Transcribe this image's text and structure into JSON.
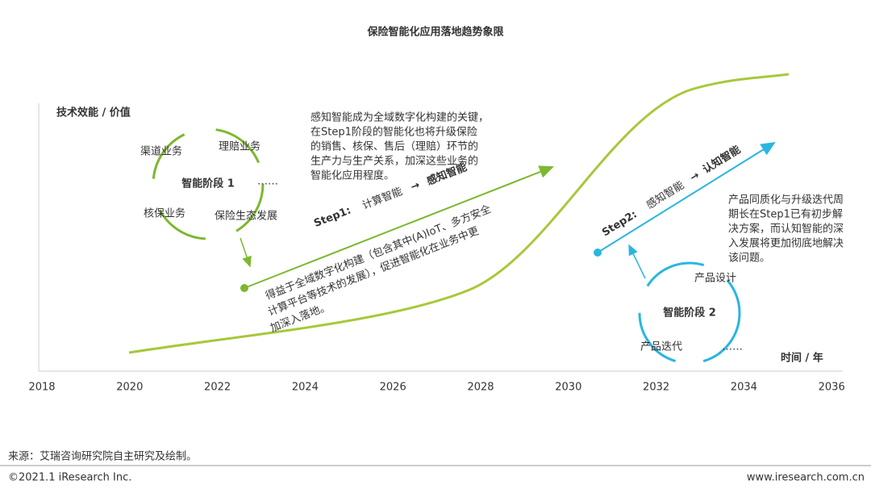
{
  "title": "保险智能化应用落地趋势象限",
  "axis": {
    "y_label": "技术效能 / 价值",
    "x_label": "时间 / 年",
    "ticks": [
      "2018",
      "2020",
      "2022",
      "2024",
      "2026",
      "2028",
      "2030",
      "2032",
      "2034",
      "2036"
    ]
  },
  "stage1": {
    "label": "智能阶段 1",
    "items": [
      "渠道业务",
      "理赔业务",
      "……",
      "核保业务",
      "保险生态发展"
    ]
  },
  "step1": {
    "prefix": "Step1:",
    "from": "计算智能",
    "arrow": "→",
    "to": "感知智能",
    "note": [
      "得益于全域数字化构建（包含其中(A)IoT、多方安全",
      "计算平台等技术的发展），促进智能化在业务中更",
      "加深入落地。"
    ]
  },
  "top_note": [
    "感知智能成为全域数字化构建的关键，",
    "在Step1阶段的智能化也将升级保险",
    "的销售、核保、售后（理赔）环节的",
    "生产力与生产关系，加深这些业务的",
    "智能化应用程度。"
  ],
  "step2": {
    "prefix": "Step2:",
    "from": "感知智能",
    "arrow": "→",
    "to": "认知智能"
  },
  "right_note": [
    "产品同质化与升级迭代周",
    "期长在Step1已有初步解",
    "决方案，而认知智能的深",
    "入发展将更加彻底地解决",
    "该问题。"
  ],
  "stage2": {
    "label": "智能阶段 2",
    "items": [
      "产品设计",
      "产品迭代",
      "……"
    ]
  },
  "footer": {
    "source": "来源：艾瑞咨询研究院自主研究及绘制。",
    "copyright": "©2021.1 iResearch Inc.",
    "site": "www.iresearch.com.cn"
  }
}
